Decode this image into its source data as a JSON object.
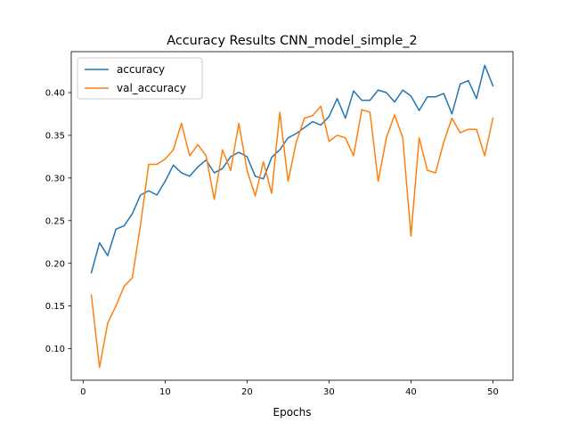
{
  "chart_data": {
    "type": "line",
    "title": "Accuracy Results CNN_model_simple_2",
    "xlabel": "Epochs",
    "ylabel": "",
    "xlim": [
      -1.45,
      52.45
    ],
    "ylim": [
      0.063,
      0.448
    ],
    "xticks": [
      0,
      10,
      20,
      30,
      40,
      50
    ],
    "yticks": [
      0.1,
      0.15,
      0.2,
      0.25,
      0.3,
      0.35,
      0.4
    ],
    "ytick_labels": [
      "0.10",
      "0.15",
      "0.20",
      "0.25",
      "0.30",
      "0.35",
      "0.40"
    ],
    "grid": false,
    "legend_position": "top-left",
    "x": [
      1,
      2,
      3,
      4,
      5,
      6,
      7,
      8,
      9,
      10,
      11,
      12,
      13,
      14,
      15,
      16,
      17,
      18,
      19,
      20,
      21,
      22,
      23,
      24,
      25,
      26,
      27,
      28,
      29,
      30,
      31,
      32,
      33,
      34,
      35,
      36,
      37,
      38,
      39,
      40,
      41,
      42,
      43,
      44,
      45,
      46,
      47,
      48,
      49,
      50
    ],
    "series": [
      {
        "name": "accuracy",
        "color": "#1f77b4",
        "values": [
          0.189,
          0.224,
          0.209,
          0.24,
          0.244,
          0.258,
          0.28,
          0.285,
          0.28,
          0.296,
          0.315,
          0.306,
          0.302,
          0.313,
          0.321,
          0.306,
          0.311,
          0.325,
          0.33,
          0.325,
          0.302,
          0.299,
          0.324,
          0.333,
          0.347,
          0.352,
          0.359,
          0.366,
          0.362,
          0.372,
          0.393,
          0.37,
          0.402,
          0.391,
          0.391,
          0.403,
          0.4,
          0.389,
          0.403,
          0.396,
          0.379,
          0.395,
          0.395,
          0.399,
          0.375,
          0.41,
          0.414,
          0.393,
          0.432,
          0.408
        ]
      },
      {
        "name": "val_accuracy",
        "color": "#ff7f0e",
        "values": [
          0.163,
          0.078,
          0.13,
          0.15,
          0.173,
          0.183,
          0.245,
          0.316,
          0.316,
          0.322,
          0.333,
          0.364,
          0.326,
          0.339,
          0.326,
          0.275,
          0.333,
          0.309,
          0.364,
          0.309,
          0.279,
          0.319,
          0.282,
          0.377,
          0.296,
          0.342,
          0.37,
          0.373,
          0.384,
          0.343,
          0.35,
          0.347,
          0.326,
          0.38,
          0.377,
          0.296,
          0.347,
          0.374,
          0.347,
          0.232,
          0.347,
          0.309,
          0.306,
          0.342,
          0.37,
          0.353,
          0.357,
          0.357,
          0.326,
          0.37
        ]
      }
    ]
  }
}
